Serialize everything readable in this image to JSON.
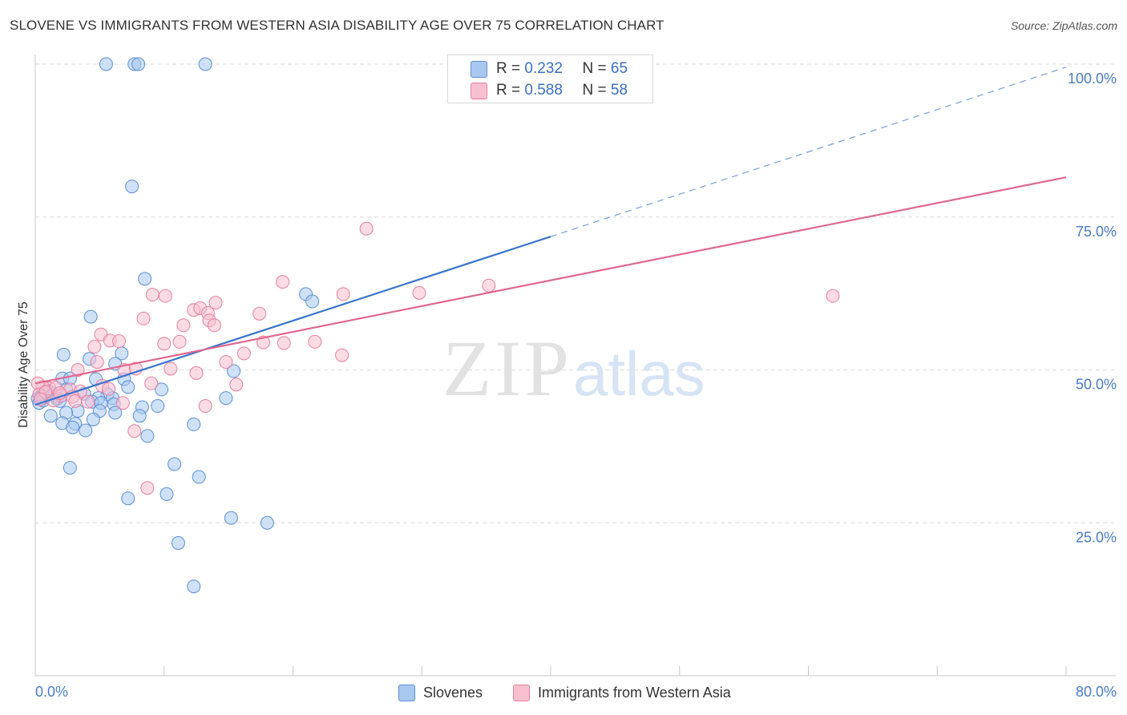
{
  "title": "SLOVENE VS IMMIGRANTS FROM WESTERN ASIA DISABILITY AGE OVER 75 CORRELATION CHART",
  "source": "Source: ZipAtlas.com",
  "watermark": {
    "zip": "ZIP",
    "atlas": "atlas"
  },
  "legend": {
    "r_label": "R =",
    "n_label": "N =",
    "rows": [
      {
        "r": "0.232",
        "n": "65",
        "color": "#a8c8f0",
        "border": "#5b8fd6"
      },
      {
        "r": "0.588",
        "n": "58",
        "color": "#f7bfd0",
        "border": "#e87fa0"
      }
    ]
  },
  "bottom_legend": [
    {
      "label": "Slovenes",
      "color": "#a8c8f0",
      "border": "#5b8fd6"
    },
    {
      "label": "Immigrants from Western Asia",
      "color": "#f7bfd0",
      "border": "#e87fa0"
    }
  ],
  "colors": {
    "blue": "#3a75d0",
    "pink": "#e2668f",
    "grid": "#dcdcdc",
    "axis_text": "#4a7bc8"
  },
  "chart_data": {
    "type": "scatter",
    "title": "SLOVENE VS IMMIGRANTS FROM WESTERN ASIA DISABILITY AGE OVER 75 CORRELATION CHART",
    "xlabel": "",
    "ylabel": "Disability Age Over 75",
    "xlim": [
      0,
      80
    ],
    "ylim": [
      0,
      100
    ],
    "x_ticks": [
      "0.0%",
      "80.0%"
    ],
    "y_ticks": [
      "25.0%",
      "50.0%",
      "75.0%",
      "100.0%"
    ],
    "y_tick_values": [
      25,
      50,
      75,
      100
    ],
    "grid": true,
    "legend_position": "top-center",
    "series": [
      {
        "name": "Slovenes",
        "color": "#a8c8f0",
        "stroke": "#5b8fd6",
        "trend": {
          "x0": 0,
          "y0": 44.3,
          "x1": 40,
          "y1": 71.8,
          "dash_to_x": 80,
          "dash_to_y": 99.5
        },
        "points": [
          [
            5.5,
            100
          ],
          [
            7.7,
            100
          ],
          [
            8.0,
            100
          ],
          [
            13.2,
            100
          ],
          [
            33.6,
            100
          ],
          [
            7.5,
            80.0
          ],
          [
            8.5,
            64.9
          ],
          [
            21.0,
            62.4
          ],
          [
            21.5,
            61.2
          ],
          [
            4.3,
            58.7
          ],
          [
            2.2,
            52.5
          ],
          [
            4.2,
            51.8
          ],
          [
            6.7,
            52.7
          ],
          [
            6.2,
            51.0
          ],
          [
            15.4,
            49.8
          ],
          [
            2.1,
            48.6
          ],
          [
            2.7,
            48.6
          ],
          [
            4.7,
            48.5
          ],
          [
            6.9,
            48.5
          ],
          [
            7.2,
            47.2
          ],
          [
            9.8,
            46.8
          ],
          [
            2.4,
            46.8
          ],
          [
            1.0,
            46.6
          ],
          [
            1.3,
            46.2
          ],
          [
            1.6,
            45.7
          ],
          [
            0.7,
            45.5
          ],
          [
            0.4,
            45.6
          ],
          [
            0.2,
            45.3
          ],
          [
            1.7,
            45.3
          ],
          [
            3.8,
            46.1
          ],
          [
            5.6,
            46.0
          ],
          [
            6.0,
            45.4
          ],
          [
            4.9,
            45.4
          ],
          [
            4.4,
            44.8
          ],
          [
            5.1,
            44.6
          ],
          [
            6.1,
            44.4
          ],
          [
            14.8,
            45.4
          ],
          [
            9.5,
            44.1
          ],
          [
            8.3,
            43.9
          ],
          [
            5.0,
            43.3
          ],
          [
            6.2,
            43.0
          ],
          [
            3.3,
            43.3
          ],
          [
            1.2,
            42.5
          ],
          [
            2.4,
            43.0
          ],
          [
            8.1,
            42.5
          ],
          [
            4.5,
            41.9
          ],
          [
            2.1,
            41.3
          ],
          [
            3.1,
            41.2
          ],
          [
            2.9,
            40.6
          ],
          [
            3.9,
            40.1
          ],
          [
            12.3,
            41.1
          ],
          [
            8.7,
            39.2
          ],
          [
            10.8,
            34.6
          ],
          [
            2.7,
            34.0
          ],
          [
            12.7,
            32.5
          ],
          [
            7.2,
            29.0
          ],
          [
            10.2,
            29.7
          ],
          [
            15.2,
            25.8
          ],
          [
            18.0,
            25.0
          ],
          [
            11.1,
            21.7
          ],
          [
            12.3,
            14.6
          ],
          [
            0.3,
            44.6
          ],
          [
            0.6,
            45.0
          ],
          [
            0.9,
            46.1
          ],
          [
            1.9,
            44.9
          ]
        ]
      },
      {
        "name": "Immigrants from Western Asia",
        "color": "#f7bfd0",
        "stroke": "#e87fa0",
        "trend": {
          "x0": 0,
          "y0": 47.8,
          "x1": 80,
          "y1": 81.5
        },
        "points": [
          [
            25.7,
            73.1
          ],
          [
            19.2,
            64.4
          ],
          [
            35.2,
            63.8
          ],
          [
            61.9,
            62.1
          ],
          [
            23.9,
            62.4
          ],
          [
            29.8,
            62.6
          ],
          [
            9.1,
            62.3
          ],
          [
            10.1,
            62.1
          ],
          [
            14.0,
            61.0
          ],
          [
            12.3,
            59.8
          ],
          [
            12.8,
            60.1
          ],
          [
            13.4,
            59.3
          ],
          [
            17.4,
            59.2
          ],
          [
            8.4,
            58.4
          ],
          [
            13.5,
            58.1
          ],
          [
            13.9,
            57.3
          ],
          [
            11.5,
            57.3
          ],
          [
            5.1,
            55.8
          ],
          [
            5.8,
            54.8
          ],
          [
            6.5,
            54.7
          ],
          [
            11.2,
            54.6
          ],
          [
            10.0,
            54.3
          ],
          [
            17.7,
            54.5
          ],
          [
            19.3,
            54.4
          ],
          [
            21.7,
            54.6
          ],
          [
            4.6,
            53.8
          ],
          [
            16.2,
            52.7
          ],
          [
            23.8,
            52.4
          ],
          [
            14.8,
            51.3
          ],
          [
            4.8,
            51.3
          ],
          [
            10.5,
            50.2
          ],
          [
            6.9,
            50.0
          ],
          [
            7.8,
            50.2
          ],
          [
            12.5,
            49.5
          ],
          [
            3.3,
            50.0
          ],
          [
            5.2,
            47.4
          ],
          [
            9.0,
            47.8
          ],
          [
            15.6,
            47.6
          ],
          [
            2.7,
            46.8
          ],
          [
            3.5,
            46.5
          ],
          [
            1.1,
            47.0
          ],
          [
            1.6,
            47.1
          ],
          [
            0.6,
            47.2
          ],
          [
            0.2,
            47.8
          ],
          [
            0.3,
            46.0
          ],
          [
            2.0,
            45.8
          ],
          [
            2.9,
            45.6
          ],
          [
            1.4,
            45.0
          ],
          [
            4.1,
            44.8
          ],
          [
            6.8,
            44.6
          ],
          [
            13.2,
            44.1
          ],
          [
            7.7,
            40.0
          ],
          [
            8.7,
            30.7
          ],
          [
            0.8,
            46.4
          ],
          [
            1.9,
            46.2
          ],
          [
            3.1,
            44.9
          ],
          [
            5.7,
            46.9
          ],
          [
            0.4,
            45.2
          ]
        ]
      }
    ]
  }
}
